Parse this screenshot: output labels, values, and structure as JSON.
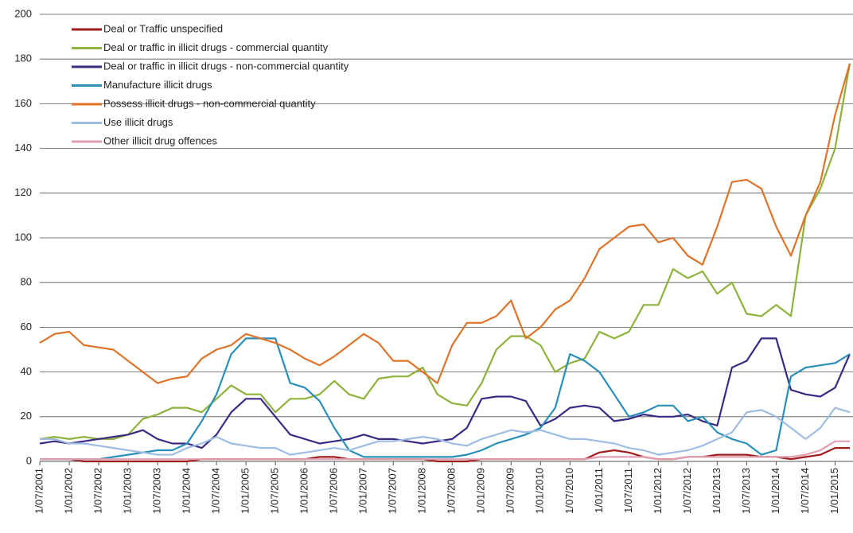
{
  "chart_data": {
    "type": "line",
    "categories": [
      "1/07/2001",
      null,
      "1/01/2002",
      null,
      "1/07/2002",
      null,
      "1/01/2003",
      null,
      "1/07/2003",
      null,
      "1/01/2004",
      null,
      "1/07/2004",
      null,
      "1/01/2005",
      null,
      "1/07/2005",
      null,
      "1/01/2006",
      null,
      "1/07/2006",
      null,
      "1/01/2007",
      null,
      "1/07/2007",
      null,
      "1/01/2008",
      null,
      "1/07/2008",
      null,
      "1/01/2009",
      null,
      "1/07/2009",
      null,
      "1/01/2010",
      null,
      "1/07/2010",
      null,
      "1/01/2011",
      null,
      "1/07/2011",
      null,
      "1/01/2012",
      null,
      "1/07/2012",
      null,
      "1/01/2013",
      null,
      "1/07/2013",
      null,
      "1/01/2014",
      null,
      "1/07/2014",
      null,
      "1/01/2015",
      null
    ],
    "series": [
      {
        "name": "Deal or Traffic unspecified",
        "color": "#a01c1c",
        "values": [
          1,
          1,
          1,
          0,
          0,
          0,
          0,
          0,
          0,
          0,
          0,
          1,
          1,
          1,
          1,
          1,
          1,
          1,
          1,
          2,
          2,
          1,
          1,
          1,
          1,
          1,
          1,
          0,
          0,
          0,
          1,
          1,
          1,
          1,
          1,
          1,
          1,
          1,
          4,
          5,
          4,
          2,
          1,
          1,
          2,
          2,
          3,
          3,
          3,
          2,
          2,
          1,
          2,
          3,
          6,
          6
        ]
      },
      {
        "name": "Deal or traffic in illicit drugs - commercial quantity",
        "color": "#8db33c",
        "values": [
          10,
          11,
          10,
          11,
          10,
          10,
          12,
          19,
          21,
          24,
          24,
          22,
          28,
          34,
          30,
          30,
          22,
          28,
          28,
          30,
          36,
          30,
          28,
          37,
          38,
          38,
          42,
          30,
          26,
          25,
          35,
          50,
          56,
          56,
          52,
          40,
          44,
          46,
          58,
          55,
          58,
          70,
          70,
          86,
          82,
          85,
          75,
          80,
          66,
          65,
          70,
          65,
          110,
          122,
          140,
          178
        ]
      },
      {
        "name": "Deal or traffic in illicit drugs - non-commercial quantity",
        "color": "#3b2a82",
        "values": [
          8,
          9,
          8,
          9,
          10,
          11,
          12,
          14,
          10,
          8,
          8,
          6,
          12,
          22,
          28,
          28,
          20,
          12,
          10,
          8,
          9,
          10,
          12,
          10,
          10,
          9,
          8,
          9,
          10,
          15,
          28,
          29,
          29,
          27,
          16,
          19,
          24,
          25,
          24,
          18,
          19,
          21,
          20,
          20,
          21,
          18,
          16,
          42,
          45,
          55,
          55,
          32,
          30,
          29,
          33,
          48
        ]
      },
      {
        "name": "Manufacture illicit drugs",
        "color": "#2a8fb8",
        "values": [
          1,
          1,
          1,
          1,
          1,
          2,
          3,
          4,
          5,
          5,
          8,
          18,
          30,
          48,
          55,
          55,
          55,
          35,
          33,
          27,
          15,
          5,
          2,
          2,
          2,
          2,
          2,
          2,
          2,
          3,
          5,
          8,
          10,
          12,
          15,
          24,
          48,
          45,
          40,
          30,
          20,
          22,
          25,
          25,
          18,
          20,
          13,
          10,
          8,
          3,
          5,
          38,
          42,
          43,
          44,
          48
        ]
      },
      {
        "name": "Possess illicit drugs - non-commercial quantity",
        "color": "#e0732a",
        "values": [
          53,
          57,
          58,
          52,
          51,
          50,
          45,
          40,
          35,
          37,
          38,
          46,
          50,
          52,
          57,
          55,
          53,
          50,
          46,
          43,
          47,
          52,
          57,
          53,
          45,
          45,
          40,
          35,
          52,
          62,
          62,
          65,
          72,
          55,
          60,
          68,
          72,
          82,
          95,
          100,
          105,
          106,
          98,
          100,
          92,
          88,
          105,
          125,
          126,
          122,
          105,
          92,
          110,
          125,
          155,
          178
        ]
      },
      {
        "name": "Use illicit drugs",
        "color": "#9dbde3",
        "values": [
          10,
          10,
          8,
          8,
          7,
          6,
          5,
          4,
          3,
          3,
          6,
          8,
          11,
          8,
          7,
          6,
          6,
          3,
          4,
          5,
          6,
          5,
          7,
          9,
          9,
          10,
          11,
          10,
          8,
          7,
          10,
          12,
          14,
          13,
          14,
          12,
          10,
          10,
          9,
          8,
          6,
          5,
          3,
          4,
          5,
          7,
          10,
          13,
          22,
          23,
          20,
          15,
          10,
          15,
          24,
          22
        ]
      },
      {
        "name": "Other illicit drug offences",
        "color": "#e0a0b0",
        "values": [
          1,
          1,
          1,
          1,
          1,
          1,
          1,
          1,
          1,
          1,
          1,
          1,
          1,
          1,
          1,
          1,
          1,
          1,
          1,
          1,
          1,
          1,
          1,
          1,
          1,
          1,
          1,
          1,
          1,
          1,
          1,
          1,
          1,
          1,
          1,
          1,
          1,
          1,
          2,
          2,
          2,
          2,
          1,
          1,
          2,
          2,
          2,
          2,
          2,
          2,
          2,
          2,
          3,
          5,
          9,
          9
        ]
      }
    ],
    "ylim": [
      0,
      200
    ],
    "yticks": [
      0,
      20,
      40,
      60,
      80,
      100,
      120,
      140,
      160,
      180,
      200
    ],
    "grid": true,
    "legend": "upper left"
  }
}
